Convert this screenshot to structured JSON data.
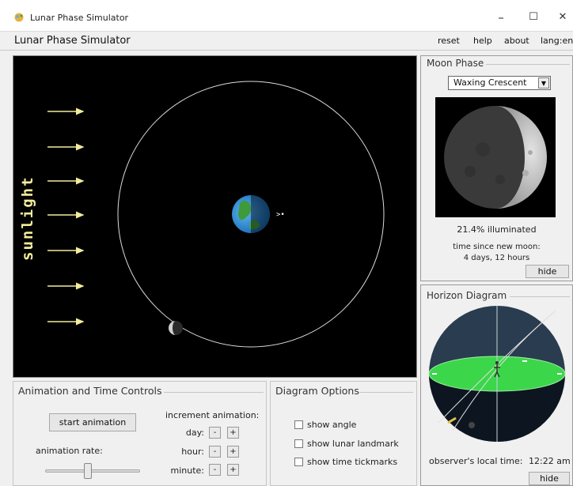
{
  "window": {
    "title": "Lunar Phase Simulator",
    "controls": {
      "minimize": "–",
      "maximize": "☐",
      "close": "✕"
    }
  },
  "menubar": {
    "app_name": "Lunar Phase Simulator",
    "items": [
      "reset",
      "help",
      "about",
      "lang:en"
    ]
  },
  "canvas": {
    "sunlight_label": "sunlight",
    "moon_marker": ">•"
  },
  "moon_phase": {
    "legend": "Moon Phase",
    "selected_phase": "Waxing Crescent",
    "illuminated_text": "21.4% illuminated",
    "time_since_label": "time since new moon:",
    "time_since_value": "4 days, 12 hours",
    "hide_label": "hide",
    "illuminated_fraction": 0.214
  },
  "horizon": {
    "legend": "Horizon Diagram",
    "local_time_label": "observer's local time:",
    "local_time_value": "12:22 am",
    "hide_label": "hide"
  },
  "animation": {
    "legend": "Animation and Time Controls",
    "start_label": "start animation",
    "increment_label": "increment animation:",
    "rate_label": "animation rate:",
    "rows": [
      {
        "label": "day:",
        "minus": "-",
        "plus": "+"
      },
      {
        "label": "hour:",
        "minus": "-",
        "plus": "+"
      },
      {
        "label": "minute:",
        "minus": "-",
        "plus": "+"
      }
    ]
  },
  "diagram_options": {
    "legend": "Diagram Options",
    "options": [
      {
        "label": "show angle",
        "checked": false
      },
      {
        "label": "show lunar landmark",
        "checked": false
      },
      {
        "label": "show time tickmarks",
        "checked": false
      }
    ]
  },
  "colors": {
    "sunlight": "#f2ec9c",
    "horizon_plane": "#3cd64a",
    "sky": "#2a3c4f"
  }
}
